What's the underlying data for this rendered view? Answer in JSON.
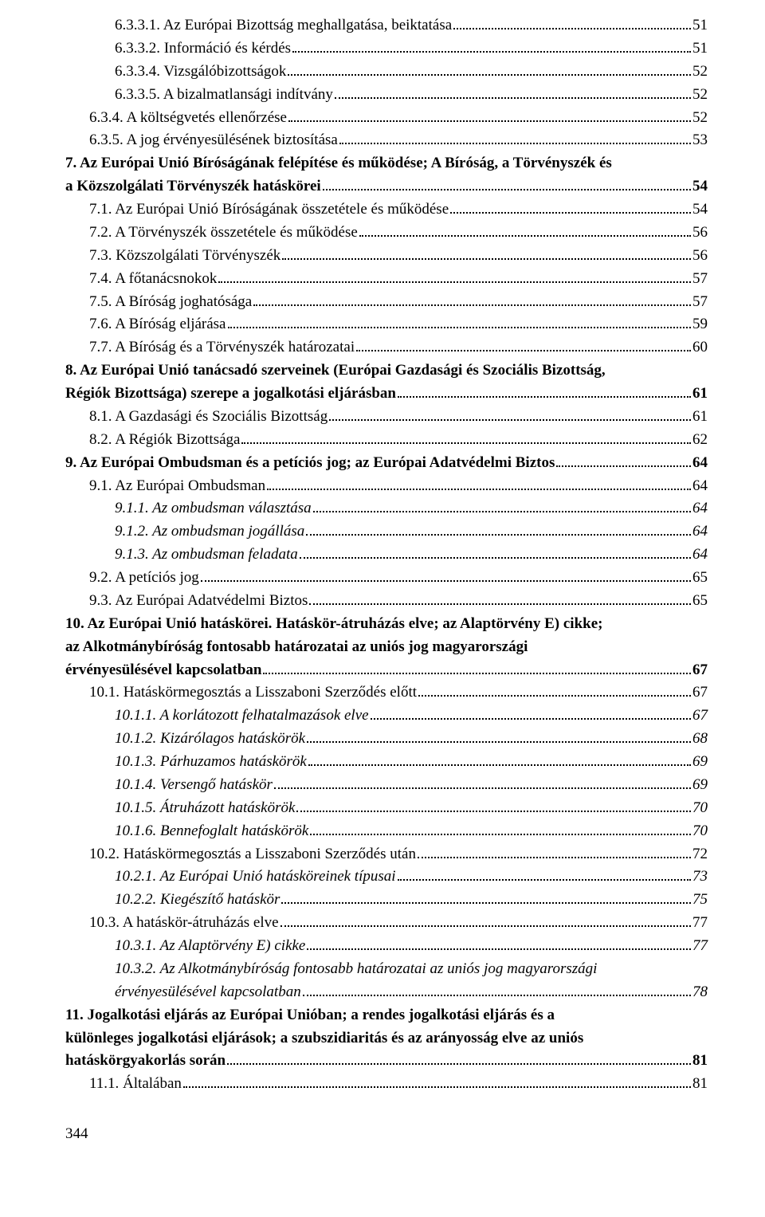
{
  "entries": [
    {
      "level": 2,
      "bold": false,
      "italic": false,
      "text": "6.3.3.1. Az Európai Bizottság meghallgatása, beiktatása",
      "page": "51"
    },
    {
      "level": 2,
      "bold": false,
      "italic": false,
      "text": "6.3.3.2. Információ és kérdés",
      "page": "51"
    },
    {
      "level": 2,
      "bold": false,
      "italic": false,
      "text": "6.3.3.4. Vizsgálóbizottságok",
      "page": "52"
    },
    {
      "level": 2,
      "bold": false,
      "italic": false,
      "text": "6.3.3.5. A bizalmatlansági indítvány",
      "page": "52"
    },
    {
      "level": 1,
      "bold": false,
      "italic": false,
      "text": "6.3.4. A költségvetés ellenőrzése",
      "page": "52"
    },
    {
      "level": 1,
      "bold": false,
      "italic": false,
      "text": "6.3.5. A jog érvényesülésének biztosítása",
      "page": "53"
    },
    {
      "level": 0,
      "bold": true,
      "italic": false,
      "num": "7.",
      "text": "Az Európai Unió Bíróságának felépítése és működése; A Bíróság, a Törvényszék és a Közszolgálati Törvényszék hatáskörei",
      "page": "54"
    },
    {
      "level": 1,
      "bold": false,
      "italic": false,
      "text": "7.1. Az Európai Unió Bíróságának összetétele és működése",
      "page": "54"
    },
    {
      "level": 1,
      "bold": false,
      "italic": false,
      "text": "7.2. A Törvényszék összetétele és működése",
      "page": "56"
    },
    {
      "level": 1,
      "bold": false,
      "italic": false,
      "text": "7.3. Közszolgálati Törvényszék",
      "page": "56"
    },
    {
      "level": 1,
      "bold": false,
      "italic": false,
      "text": "7.4. A főtanácsnokok",
      "page": "57"
    },
    {
      "level": 1,
      "bold": false,
      "italic": false,
      "text": "7.5. A Bíróság joghatósága",
      "page": "57"
    },
    {
      "level": 1,
      "bold": false,
      "italic": false,
      "text": "7.6. A Bíróság eljárása",
      "page": "59"
    },
    {
      "level": 1,
      "bold": false,
      "italic": false,
      "text": "7.7. A Bíróság és a Törvényszék határozatai",
      "page": "60"
    },
    {
      "level": 0,
      "bold": true,
      "italic": false,
      "num": "8.",
      "text": "Az Európai Unió tanácsadó szerveinek (Európai Gazdasági és Szociális Bizottság, Régiók Bizottsága) szerepe a jogalkotási eljárásban",
      "page": "61"
    },
    {
      "level": 1,
      "bold": false,
      "italic": false,
      "text": "8.1. A Gazdasági és Szociális Bizottság",
      "page": "61"
    },
    {
      "level": 1,
      "bold": false,
      "italic": false,
      "text": "8.2. A Régiók Bizottsága",
      "page": "62"
    },
    {
      "level": 0,
      "bold": true,
      "italic": false,
      "num": "9.",
      "text": "Az Európai Ombudsman és a petíciós jog; az Európai Adatvédelmi Biztos",
      "page": "64"
    },
    {
      "level": 1,
      "bold": false,
      "italic": false,
      "text": "9.1. Az Európai Ombudsman",
      "page": "64"
    },
    {
      "level": 3,
      "bold": false,
      "italic": true,
      "text": "9.1.1. Az ombudsman választása",
      "page": "64"
    },
    {
      "level": 3,
      "bold": false,
      "italic": true,
      "text": "9.1.2. Az ombudsman jogállása",
      "page": "64"
    },
    {
      "level": 3,
      "bold": false,
      "italic": true,
      "text": "9.1.3. Az ombudsman feladata",
      "page": "64"
    },
    {
      "level": 1,
      "bold": false,
      "italic": false,
      "text": "9.2. A petíciós jog",
      "page": "65"
    },
    {
      "level": 1,
      "bold": false,
      "italic": false,
      "text": "9.3. Az Európai Adatvédelmi Biztos",
      "page": "65"
    },
    {
      "level": 0,
      "bold": true,
      "italic": false,
      "num": "10.",
      "text": "Az Európai Unió hatáskörei. Hatáskör-átruházás elve; az Alaptörvény E) cikke; az Alkotmánybíróság fontosabb határozatai az uniós jog magyarországi érvényesülésével kapcsolatban",
      "page": "67"
    },
    {
      "level": 1,
      "bold": false,
      "italic": false,
      "text": "10.1. Hatáskörmegosztás a Lisszaboni Szerződés előtt",
      "page": "67"
    },
    {
      "level": 3,
      "bold": false,
      "italic": true,
      "text": "10.1.1. A korlátozott felhatalmazások elve",
      "page": "67"
    },
    {
      "level": 3,
      "bold": false,
      "italic": true,
      "text": "10.1.2. Kizárólagos hatáskörök",
      "page": "68"
    },
    {
      "level": 3,
      "bold": false,
      "italic": true,
      "text": "10.1.3. Párhuzamos hatáskörök",
      "page": "69"
    },
    {
      "level": 3,
      "bold": false,
      "italic": true,
      "text": "10.1.4. Versengő hatáskör",
      "page": "69"
    },
    {
      "level": 3,
      "bold": false,
      "italic": true,
      "text": "10.1.5. Átruházott hatáskörök",
      "page": "70"
    },
    {
      "level": 3,
      "bold": false,
      "italic": true,
      "text": "10.1.6. Bennefoglalt hatáskörök",
      "page": "70"
    },
    {
      "level": 1,
      "bold": false,
      "italic": false,
      "text": "10.2. Hatáskörmegosztás a Lisszaboni Szerződés után",
      "page": "72"
    },
    {
      "level": 3,
      "bold": false,
      "italic": true,
      "text": "10.2.1. Az Európai Unió hatásköreinek típusai",
      "page": "73"
    },
    {
      "level": 3,
      "bold": false,
      "italic": true,
      "text": "10.2.2. Kiegészítő hatáskör ",
      "page": "75"
    },
    {
      "level": 1,
      "bold": false,
      "italic": false,
      "text": "10.3. A hatáskör-átruházás elve",
      "page": "77"
    },
    {
      "level": 3,
      "bold": false,
      "italic": true,
      "text": "10.3.1. Az Alaptörvény E) cikke",
      "page": "77"
    },
    {
      "level": 3,
      "bold": false,
      "italic": true,
      "text": "10.3.2. Az Alkotmánybíróság fontosabb határozatai az uniós jog magyarországi érvényesülésével kapcsolatban",
      "page": "78"
    },
    {
      "level": 0,
      "bold": true,
      "italic": false,
      "num": "11.",
      "text": "Jogalkotási eljárás az Európai Unióban; a rendes jogalkotási eljárás és a különleges jogalkotási eljárások; a szubszidiaritás és az arányosság elve az uniós hatáskörgyakorlás során",
      "page": "81"
    },
    {
      "level": 1,
      "bold": false,
      "italic": false,
      "text": "11.1. Általában",
      "page": "81"
    }
  ],
  "footerPage": "344",
  "colors": {
    "text": "#000000",
    "background": "#ffffff"
  }
}
